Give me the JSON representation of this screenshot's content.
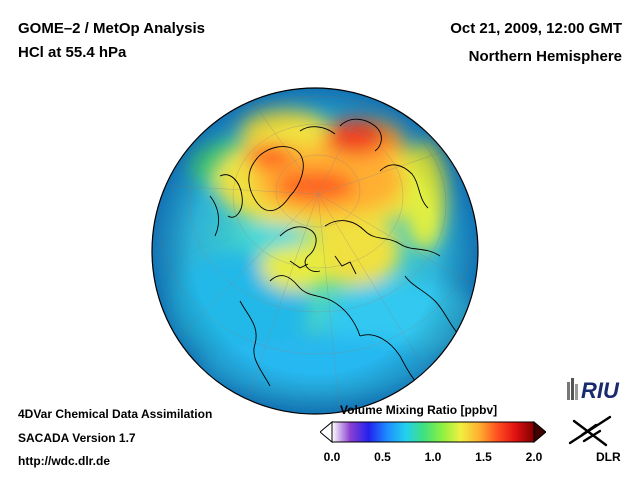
{
  "header": {
    "title_line1": "GOME–2 / MetOp Analysis",
    "title_line2": "HCl at 55.4 hPa",
    "date": "Oct 21, 2009, 12:00 GMT",
    "region": "Northern Hemisphere"
  },
  "footer": {
    "line1": "4DVar Chemical Data Assimilation",
    "line2": "SACADA Version 1.7",
    "line3": "http://wdc.dlr.de"
  },
  "colorbar": {
    "label": "Volume Mixing Ratio [ppbv]",
    "ticks": [
      "0.0",
      "0.5",
      "1.0",
      "1.5",
      "2.0"
    ],
    "min": 0.0,
    "max": 2.0,
    "colors": [
      "#ffffff",
      "#8a3fd0",
      "#2222ee",
      "#1e8cff",
      "#22d0f0",
      "#40e080",
      "#8cf040",
      "#f0f040",
      "#ffb030",
      "#ff5020",
      "#e01010",
      "#800000"
    ]
  },
  "logos": {
    "riu": "RIU",
    "dlr": "DLR"
  },
  "map": {
    "projection": "orthographic",
    "hemisphere": "northern",
    "quantity": "HCl volume mixing ratio"
  }
}
